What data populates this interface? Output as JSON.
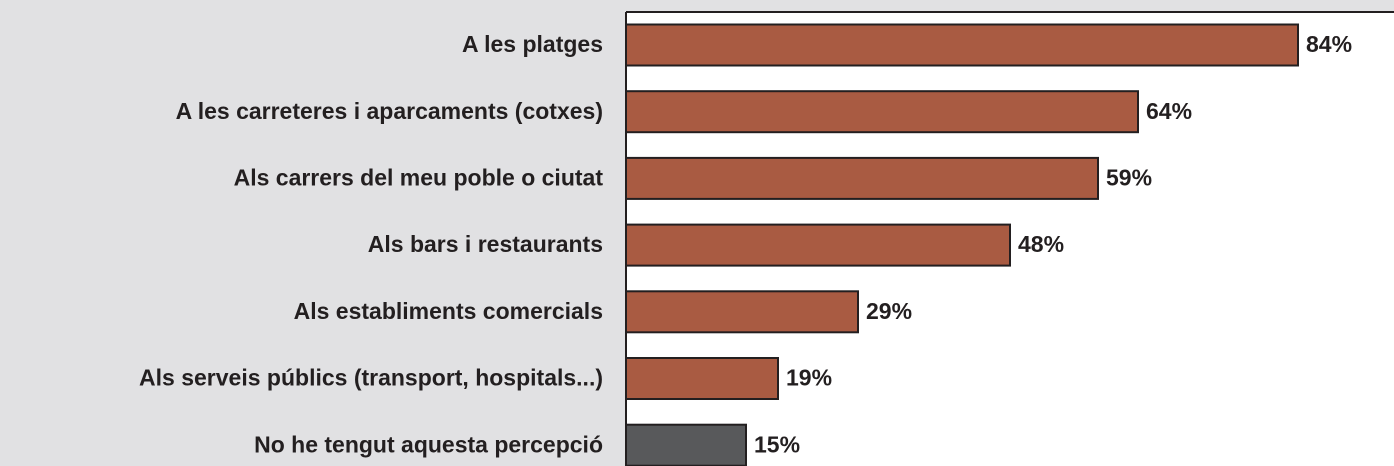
{
  "chart_data": {
    "type": "bar",
    "orientation": "horizontal",
    "categories": [
      "A les platges",
      "A les carreteres i aparcaments (cotxes)",
      "Als carrers del meu poble o ciutat",
      "Als bars i restaurants",
      "Als establiments comercials",
      "Als serveis públics (transport, hospitals...)",
      "No he tengut aquesta percepció"
    ],
    "values": [
      84,
      64,
      59,
      48,
      29,
      19,
      15
    ],
    "value_labels": [
      "84%",
      "64%",
      "59%",
      "48%",
      "29%",
      "19%",
      "15%"
    ],
    "colors": [
      "#a95b42",
      "#a95b42",
      "#a95b42",
      "#a95b42",
      "#a95b42",
      "#a95b42",
      "#58595b"
    ],
    "xlim": [
      0,
      96
    ]
  }
}
